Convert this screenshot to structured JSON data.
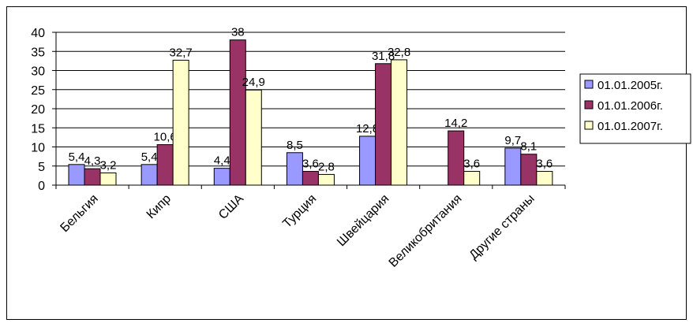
{
  "chart_data": {
    "type": "bar",
    "categories": [
      "Бельгия",
      "Кипр",
      "США",
      "Турция",
      "Швейцария",
      "Великобритания",
      "Другие страны"
    ],
    "series": [
      {
        "name": "01.01.2005г.",
        "values": [
          5.4,
          5.4,
          4.4,
          8.5,
          12.8,
          null,
          9.7
        ],
        "labels": [
          "5,4",
          "5,4",
          "4,4",
          "8,5",
          "12,8",
          "",
          "9,7"
        ],
        "color": "#9999ff"
      },
      {
        "name": "01.01.2006г.",
        "values": [
          4.3,
          10.6,
          38,
          3.6,
          31.8,
          14.2,
          8.1
        ],
        "labels": [
          "4,3",
          "10,6",
          "38",
          "3,6",
          "31,8",
          "14,2",
          "8,1"
        ],
        "color": "#993366"
      },
      {
        "name": "01.01.2007г.",
        "values": [
          3.2,
          32.7,
          24.9,
          2.8,
          32.8,
          3.6,
          3.6
        ],
        "labels": [
          "3,2",
          "32,7",
          "24,9",
          "2,8",
          "32,8",
          "3,6",
          "3,6"
        ],
        "color": "#ffffcc"
      }
    ],
    "yticks": [
      "0",
      "5",
      "10",
      "15",
      "20",
      "25",
      "30",
      "35",
      "40"
    ],
    "ylim": [
      0,
      40
    ],
    "grid": true,
    "legend_position": "right"
  }
}
